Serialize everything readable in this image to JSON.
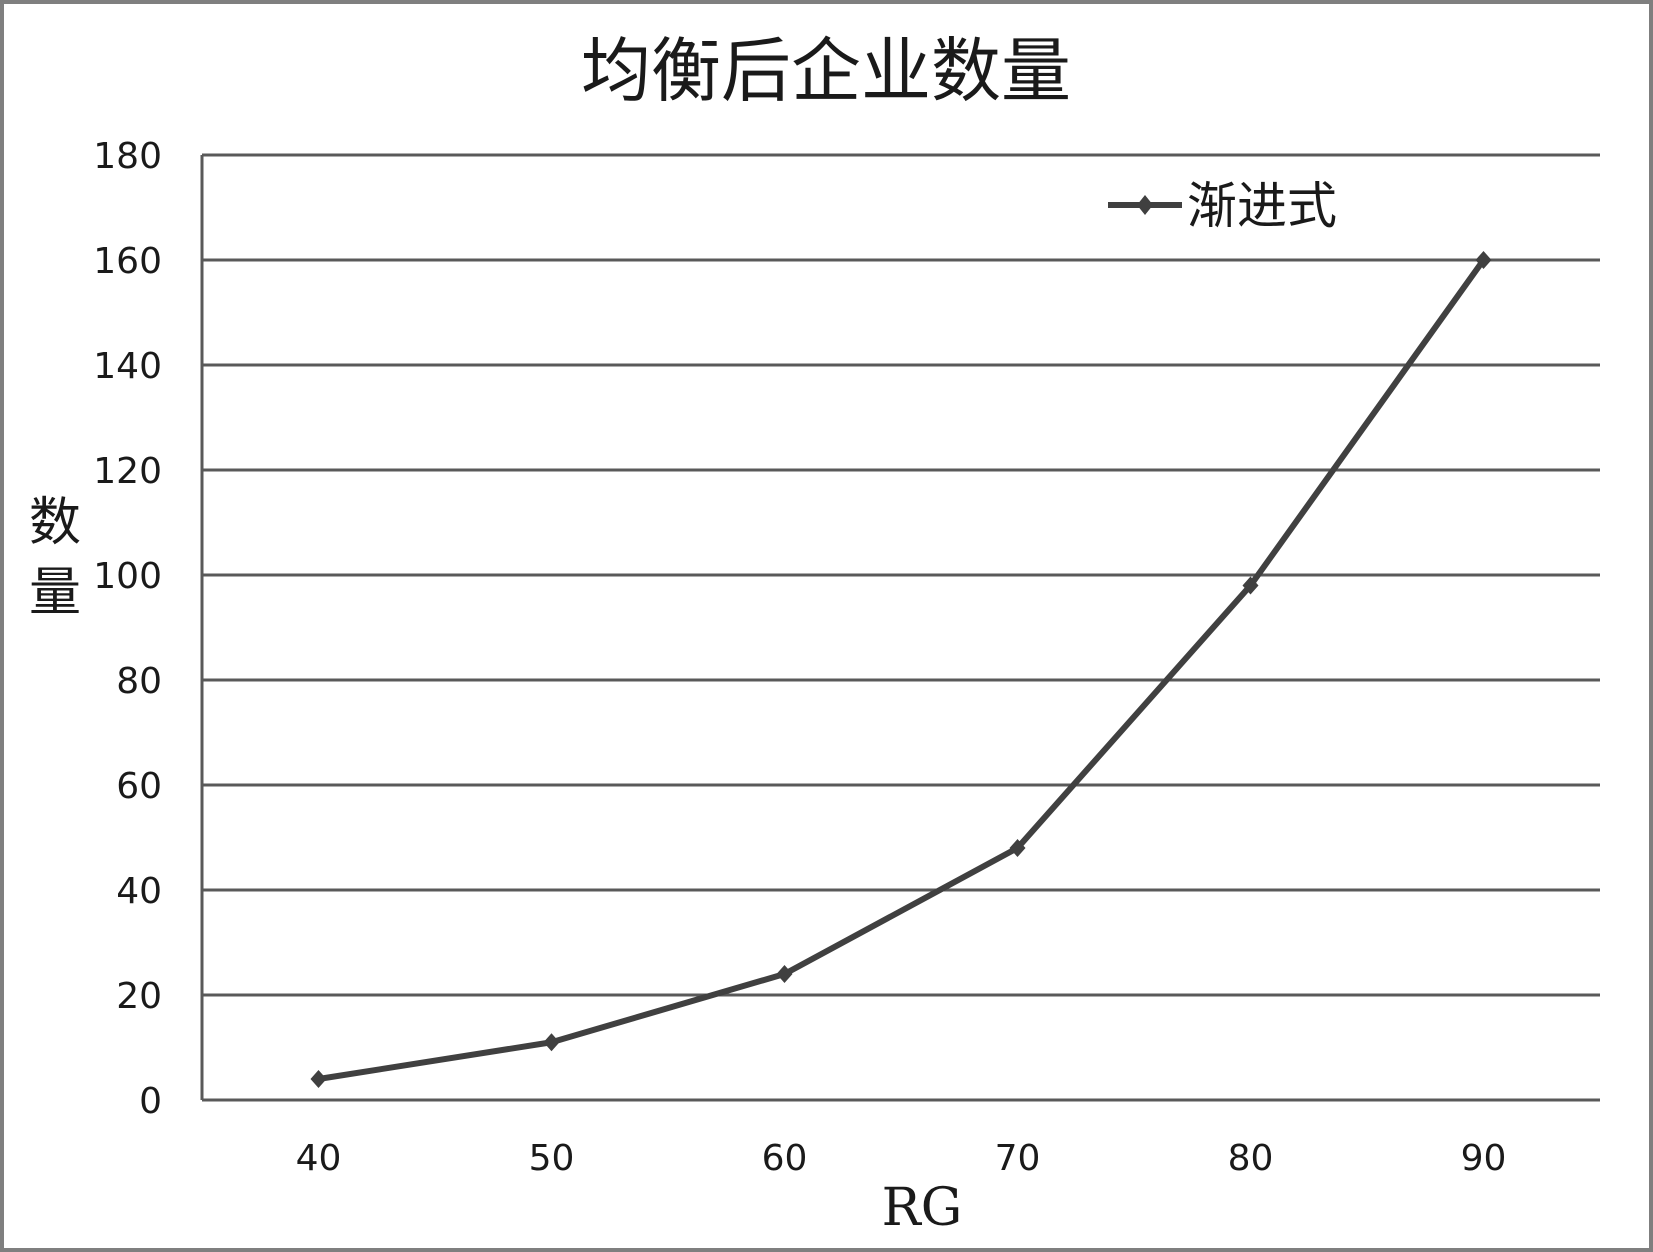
{
  "chart_data": {
    "type": "line",
    "title": "均衡后企业数量",
    "xlabel": "RG",
    "ylabel": "数量",
    "categories": [
      "40",
      "50",
      "60",
      "70",
      "80",
      "90"
    ],
    "x": [
      40,
      50,
      60,
      70,
      80,
      90
    ],
    "series": [
      {
        "name": "渐进式",
        "values": [
          4,
          11,
          24,
          48,
          98,
          160
        ]
      }
    ],
    "ylim": [
      0,
      180
    ],
    "yticks": [
      "0",
      "20",
      "40",
      "60",
      "80",
      "100",
      "120",
      "140",
      "160",
      "180"
    ],
    "grid": true,
    "legend": "top-right",
    "colors": {
      "line": "#404040",
      "grid": "#595959",
      "frame": "#7f7f7f",
      "text": "#1a1a1a"
    }
  }
}
